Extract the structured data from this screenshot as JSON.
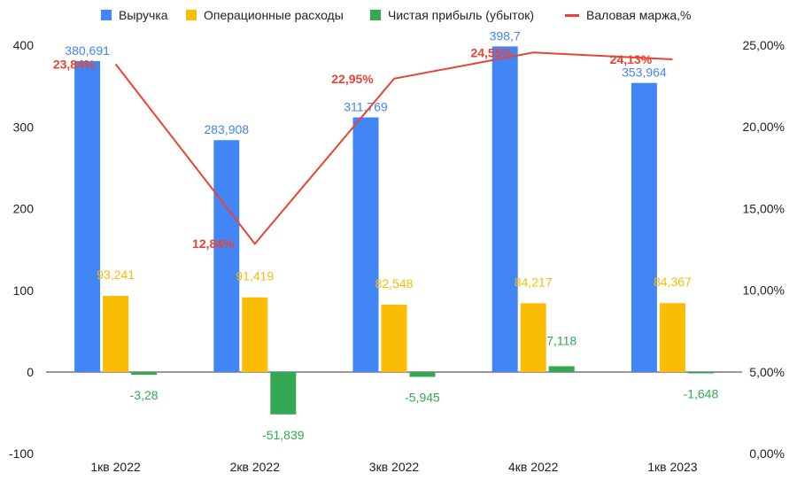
{
  "chart_data": {
    "type": "bar",
    "categories": [
      "1кв 2022",
      "2кв 2022",
      "3кв 2022",
      "4кв 2022",
      "1кв 2023"
    ],
    "series": [
      {
        "name": "Выручка",
        "color": "#4285f4",
        "values": [
          380.691,
          283.908,
          311.769,
          398.7,
          353.964
        ],
        "labels": [
          "380,691",
          "283,908",
          "311,769",
          "398,7",
          "353,964"
        ]
      },
      {
        "name": "Операционные расходы",
        "color": "#fbbc04",
        "values": [
          93.241,
          91.419,
          82.548,
          84.217,
          84.367
        ],
        "labels": [
          "93,241",
          "91,419",
          "82,548",
          "84,217",
          "84,367"
        ]
      },
      {
        "name": "Чистая прибыль (убыток)",
        "color": "#34a853",
        "values": [
          -3.28,
          -51.839,
          -5.945,
          7.118,
          -1.648
        ],
        "labels": [
          "-3,28",
          "-51,839",
          "-5,945",
          "7,118",
          "-1,648"
        ]
      }
    ],
    "line_series": {
      "name": "Валовая маржа,%",
      "type": "line",
      "axis": "right",
      "color": "#ea4335",
      "values": [
        23.84,
        12.84,
        22.95,
        24.55,
        24.13
      ],
      "labels": [
        "23,84%",
        "12,84%",
        "22,95%",
        "24,55%",
        "24,13%"
      ]
    },
    "y_left": {
      "ylim": [
        -100,
        400
      ],
      "ticks": [
        -100,
        0,
        100,
        200,
        300,
        400
      ],
      "tick_labels": [
        "-100",
        "0",
        "100",
        "200",
        "300",
        "400"
      ]
    },
    "y_right": {
      "ylim": [
        0,
        25
      ],
      "ticks": [
        0,
        5,
        10,
        15,
        20,
        25
      ],
      "tick_labels": [
        "0,00%",
        "5,00%",
        "10,00%",
        "15,00%",
        "20,00%",
        "25,00%"
      ]
    },
    "xlabel": "",
    "ylabel": "",
    "grid": false,
    "legend": "top"
  }
}
